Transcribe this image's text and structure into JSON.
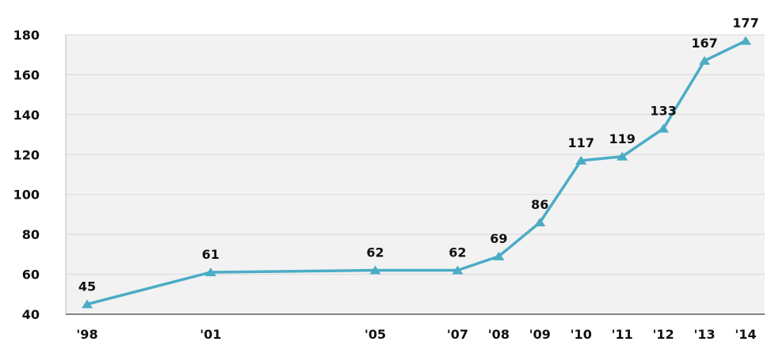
{
  "chart_data": {
    "type": "line",
    "title": "",
    "xlabel": "",
    "ylabel": "",
    "x": [
      1998,
      2001,
      2005,
      2007,
      2008,
      2009,
      2010,
      2011,
      2012,
      2013,
      2014
    ],
    "x_tick_labels": [
      "'98",
      "'01",
      "'05",
      "'07",
      "'08",
      "'09",
      "'10",
      "'11",
      "'12",
      "'13",
      "'14"
    ],
    "xlim": [
      1998,
      2014
    ],
    "ylim": [
      40,
      180
    ],
    "y_ticks": [
      40,
      60,
      80,
      100,
      120,
      140,
      160,
      180
    ],
    "grid": true,
    "legend": "none",
    "series": [
      {
        "values": [
          45,
          61,
          62,
          62,
          69,
          86,
          117,
          119,
          133,
          167,
          177
        ],
        "data_labels": [
          "45",
          "61",
          "62",
          "62",
          "69",
          "86",
          "117",
          "119",
          "133",
          "167",
          "177"
        ],
        "color": "#4BACC6",
        "marker": "triangle"
      }
    ],
    "colors": {
      "plot_bg": "#F2F2F2",
      "grid": "#D9D9D9",
      "axis": "#111111",
      "text": "#111111"
    }
  }
}
